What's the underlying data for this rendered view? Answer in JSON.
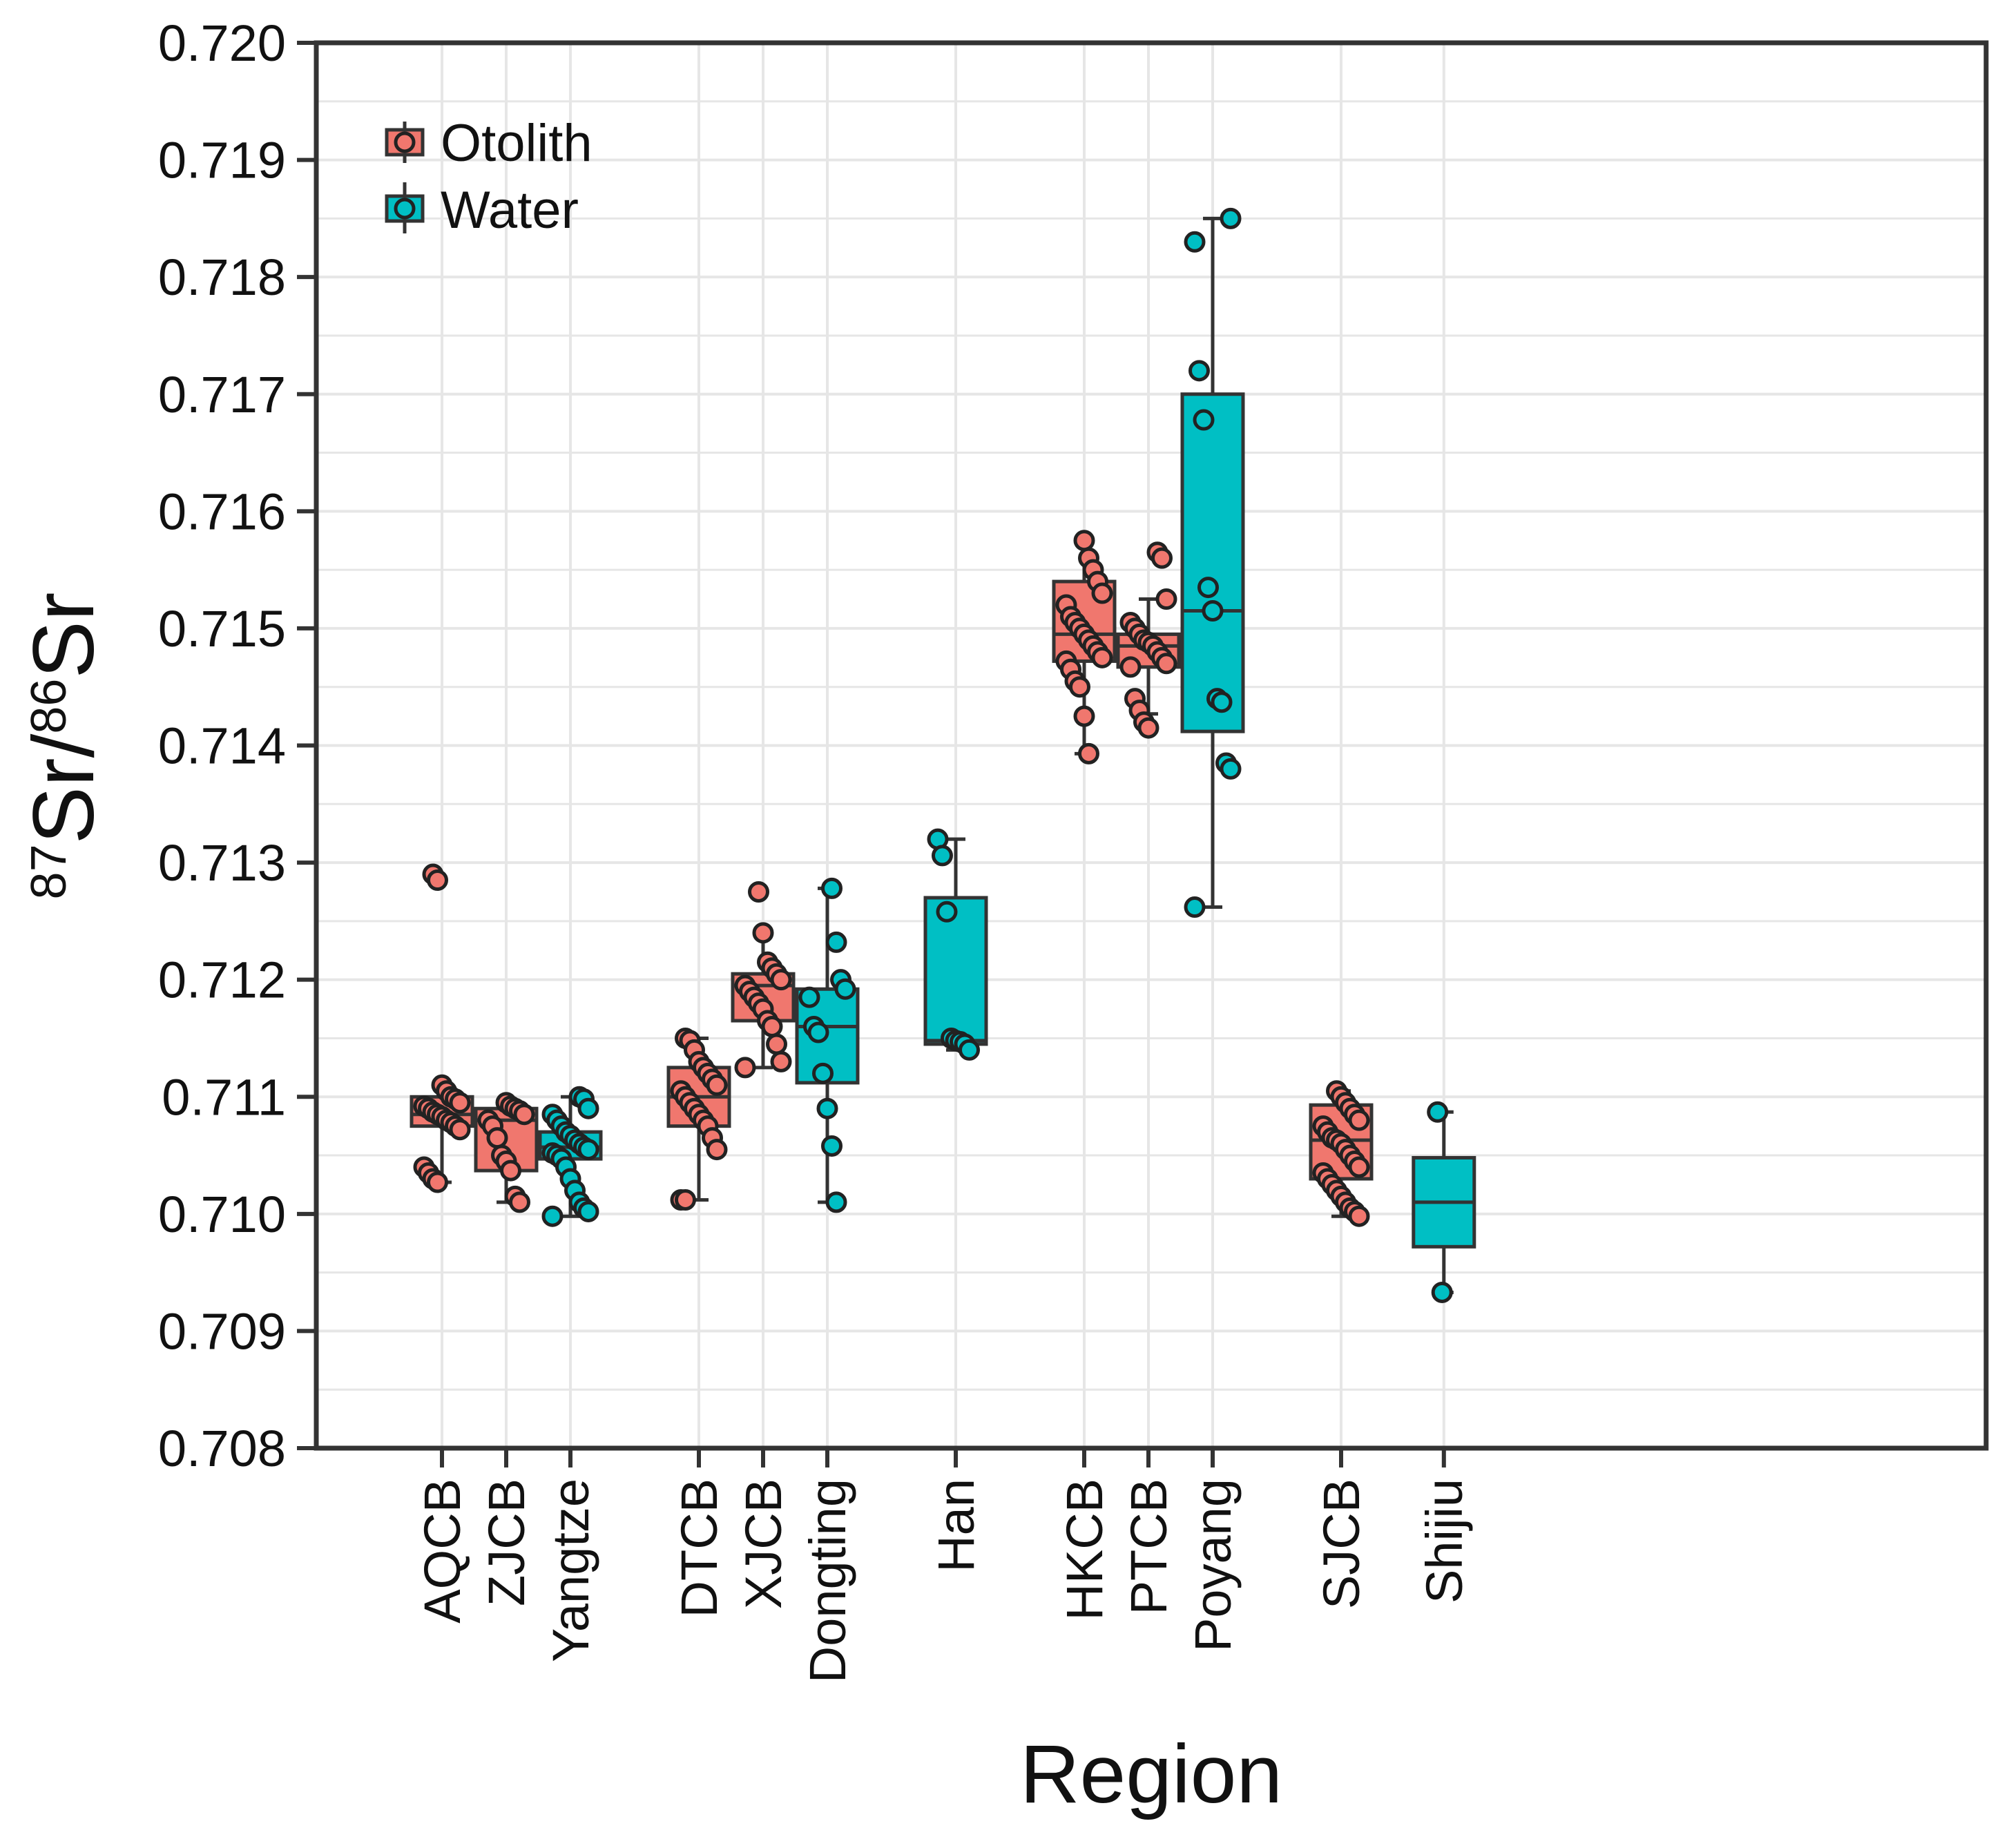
{
  "chart_data": {
    "type": "box",
    "title": "",
    "xlabel": "Region",
    "ylabel": {
      "prefix_sup": "87",
      "main1": "Sr/",
      "mid_sup": "86",
      "main2": "Sr"
    },
    "ylim": [
      0.708,
      0.72
    ],
    "yticks": [
      "0.708",
      "0.709",
      "0.710",
      "0.711",
      "0.712",
      "0.713",
      "0.714",
      "0.715",
      "0.716",
      "0.717",
      "0.718",
      "0.719",
      "0.720"
    ],
    "grid": true,
    "legend": {
      "position": "top-left",
      "entries": [
        {
          "label": "Otolith",
          "color": "#F0776E"
        },
        {
          "label": "Water",
          "color": "#00BFC4"
        }
      ]
    },
    "series": [
      {
        "name": "Otolith",
        "color": "#F0776E"
      },
      {
        "name": "Water",
        "color": "#00BFC4"
      }
    ],
    "categories": [
      "AQCB",
      "ZJCB",
      "Yangtze",
      "DTCB",
      "XJCB",
      "Dongting",
      "Han",
      "HKCB",
      "PTCB",
      "Poyang",
      "SJCB",
      "Shijiu"
    ],
    "boxes": [
      {
        "category": "AQCB",
        "series": "Otolith",
        "x": 1.0,
        "whisker_low": 0.71027,
        "q1": 0.71075,
        "median": 0.71085,
        "q3": 0.711,
        "whisker_high": 0.7111,
        "points": [
          0.7129,
          0.71285,
          0.7111,
          0.71105,
          0.711,
          0.71098,
          0.71095,
          0.71092,
          0.7109,
          0.71087,
          0.71085,
          0.71083,
          0.7108,
          0.71078,
          0.71075,
          0.71072,
          0.7104,
          0.71035,
          0.7103,
          0.71027
        ]
      },
      {
        "category": "ZJCB",
        "series": "Otolith",
        "x": 2.0,
        "whisker_low": 0.7101,
        "q1": 0.71037,
        "median": 0.7108,
        "q3": 0.7109,
        "whisker_high": 0.71095,
        "points": [
          0.71095,
          0.71092,
          0.7109,
          0.71088,
          0.71085,
          0.7108,
          0.71075,
          0.71065,
          0.7105,
          0.71045,
          0.71037,
          0.71015,
          0.7101
        ]
      },
      {
        "category": "Yangtze",
        "series": "Water",
        "x": 3.0,
        "whisker_low": 0.70998,
        "q1": 0.71047,
        "median": 0.71057,
        "q3": 0.7107,
        "whisker_high": 0.711,
        "points": [
          0.711,
          0.71098,
          0.7109,
          0.71085,
          0.7108,
          0.71075,
          0.7107,
          0.71067,
          0.71063,
          0.7106,
          0.71057,
          0.71055,
          0.71052,
          0.7105,
          0.71047,
          0.7104,
          0.7103,
          0.7102,
          0.7101,
          0.71005,
          0.71002,
          0.70998
        ]
      },
      {
        "category": "DTCB",
        "series": "Otolith",
        "x": 5.0,
        "whisker_low": 0.71012,
        "q1": 0.71075,
        "median": 0.711,
        "q3": 0.71125,
        "whisker_high": 0.7115,
        "points": [
          0.7115,
          0.71148,
          0.7114,
          0.7113,
          0.71125,
          0.7112,
          0.71115,
          0.7111,
          0.71105,
          0.711,
          0.71095,
          0.7109,
          0.71085,
          0.7108,
          0.71075,
          0.71065,
          0.71055,
          0.71012,
          0.71012
        ]
      },
      {
        "category": "XJCB",
        "series": "Otolith",
        "x": 6.0,
        "whisker_low": 0.71125,
        "q1": 0.71165,
        "median": 0.71195,
        "q3": 0.71205,
        "whisker_high": 0.7124,
        "points": [
          0.71275,
          0.7124,
          0.71215,
          0.7121,
          0.71205,
          0.712,
          0.71195,
          0.7119,
          0.71185,
          0.7118,
          0.71175,
          0.71165,
          0.7116,
          0.71145,
          0.7113,
          0.71125
        ]
      },
      {
        "category": "Dongting",
        "series": "Water",
        "x": 7.0,
        "whisker_low": 0.7101,
        "q1": 0.71112,
        "median": 0.7116,
        "q3": 0.71192,
        "whisker_high": 0.71278,
        "points": [
          0.71278,
          0.71232,
          0.712,
          0.71192,
          0.71185,
          0.7116,
          0.71155,
          0.7112,
          0.7109,
          0.71058,
          0.7101
        ]
      },
      {
        "category": "Han",
        "series": "Water",
        "x": 9.0,
        "whisker_low": 0.7114,
        "q1": 0.71145,
        "median": 0.71148,
        "q3": 0.7127,
        "whisker_high": 0.7132,
        "points": [
          0.7132,
          0.71306,
          0.71258,
          0.7115,
          0.71148,
          0.71147,
          0.71145,
          0.7114
        ]
      },
      {
        "category": "HKCB",
        "series": "Otolith",
        "x": 11.0,
        "whisker_low": 0.71393,
        "q1": 0.71472,
        "median": 0.71495,
        "q3": 0.7154,
        "whisker_high": 0.71575,
        "points": [
          0.71575,
          0.7156,
          0.7155,
          0.7154,
          0.7153,
          0.7152,
          0.7151,
          0.71505,
          0.715,
          0.71495,
          0.7149,
          0.71485,
          0.7148,
          0.71475,
          0.71472,
          0.71465,
          0.71455,
          0.7145,
          0.71425,
          0.71393
        ]
      },
      {
        "category": "PTCB",
        "series": "Otolith",
        "x": 12.0,
        "whisker_low": 0.71427,
        "q1": 0.71467,
        "median": 0.71485,
        "q3": 0.71495,
        "whisker_high": 0.71525,
        "points": [
          0.71565,
          0.7156,
          0.71525,
          0.71505,
          0.715,
          0.71495,
          0.7149,
          0.71488,
          0.71485,
          0.7148,
          0.71475,
          0.7147,
          0.71467,
          0.7144,
          0.7143,
          0.7142,
          0.71415
        ]
      },
      {
        "category": "Poyang",
        "series": "Water",
        "x": 13.0,
        "whisker_low": 0.71262,
        "q1": 0.71412,
        "median": 0.71515,
        "q3": 0.717,
        "whisker_high": 0.7185,
        "points": [
          0.7185,
          0.7183,
          0.7172,
          0.71678,
          0.71535,
          0.71515,
          0.7144,
          0.71437,
          0.71385,
          0.7138,
          0.71262
        ]
      },
      {
        "category": "SJCB",
        "series": "Otolith",
        "x": 15.0,
        "whisker_low": 0.70998,
        "q1": 0.7103,
        "median": 0.71063,
        "q3": 0.71093,
        "whisker_high": 0.71105,
        "points": [
          0.71105,
          0.711,
          0.71095,
          0.7109,
          0.71085,
          0.7108,
          0.71075,
          0.7107,
          0.71065,
          0.71063,
          0.7106,
          0.71055,
          0.7105,
          0.71045,
          0.7104,
          0.71035,
          0.7103,
          0.71025,
          0.7102,
          0.71015,
          0.7101,
          0.71005,
          0.71002,
          0.70998
        ]
      },
      {
        "category": "Shijiu",
        "series": "Water",
        "x": 16.6,
        "whisker_low": 0.70933,
        "q1": 0.70972,
        "median": 0.7101,
        "q3": 0.71048,
        "whisker_high": 0.71087,
        "points": [
          0.71087,
          0.70933
        ]
      }
    ]
  }
}
